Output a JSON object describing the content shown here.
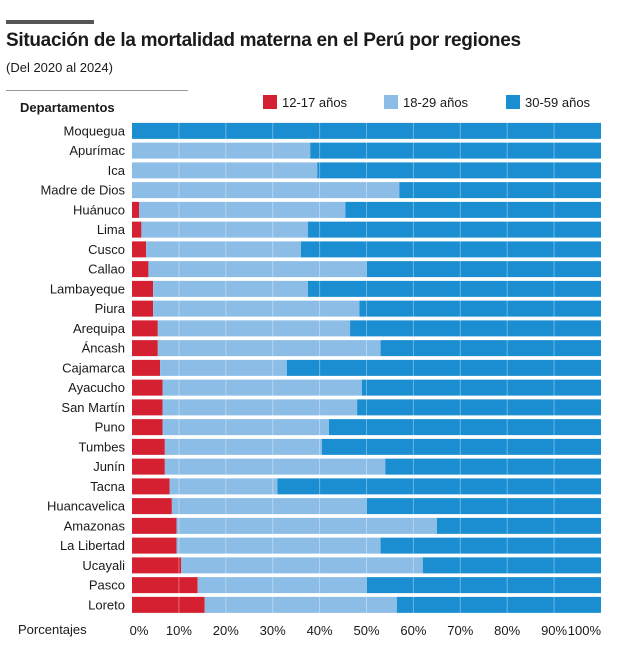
{
  "header": {
    "title": "Situación de la mortalidad materna en el Perú por regiones",
    "subtitle": "(Del 2020 al 2024)"
  },
  "chart_data": {
    "type": "bar",
    "orientation": "horizontal",
    "stacked": true,
    "title": "Situación de la mortalidad materna en el Perú por regiones",
    "subtitle": "(Del 2020 al 2024)",
    "ylabel": "Departamentos",
    "xlabel": "Porcentajes",
    "xlim": [
      0,
      100
    ],
    "xticks": [
      "0%",
      "10%",
      "20%",
      "30%",
      "40%",
      "50%",
      "60%",
      "70%",
      "80%",
      "90%",
      "100%"
    ],
    "grid": true,
    "legend_position": "top-right",
    "categories": [
      "Moquegua",
      "Apurímac",
      "Ica",
      "Madre de Dios",
      "Huánuco",
      "Lima",
      "Cusco",
      "Callao",
      "Lambayeque",
      "Piura",
      "Arequipa",
      "Áncash",
      "Cajamarca",
      "Ayacucho",
      "San Martín",
      "Puno",
      "Tumbes",
      "Junín",
      "Tacna",
      "Huancavelica",
      "Amazonas",
      "La Libertad",
      "Ucayali",
      "Pasco",
      "Loreto"
    ],
    "series": [
      {
        "name": "12-17 años",
        "color": "#d42030",
        "values": [
          0,
          0,
          0,
          0,
          1.5,
          2,
          3,
          3.5,
          4.5,
          4.5,
          5.5,
          5.5,
          6,
          6.5,
          6.5,
          6.5,
          7,
          7,
          8,
          8.5,
          9.5,
          9.5,
          10.5,
          14,
          15.5
        ]
      },
      {
        "name": "18-29 años",
        "color": "#8cbde6",
        "values": [
          0,
          38,
          39.5,
          57,
          44,
          35.5,
          33,
          46.5,
          33,
          44,
          41,
          47.5,
          27,
          42.5,
          41.5,
          35.5,
          33.5,
          47,
          23,
          41.5,
          55.5,
          43.5,
          51.5,
          36,
          41
        ]
      },
      {
        "name": "30-59 años",
        "color": "#1a8ed1",
        "values": [
          100,
          62,
          60.5,
          43,
          54.5,
          62.5,
          64,
          50,
          62.5,
          51.5,
          53.5,
          47,
          67,
          51,
          52,
          58,
          59.5,
          46,
          69,
          50,
          35,
          47,
          38,
          50,
          43.5
        ]
      }
    ]
  }
}
